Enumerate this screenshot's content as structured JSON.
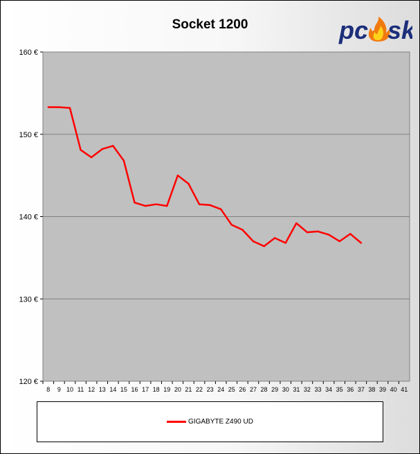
{
  "chart_data": {
    "type": "line",
    "title": "Socket 1200",
    "xlabel": "",
    "ylabel": "",
    "x": [
      8,
      9,
      10,
      11,
      12,
      13,
      14,
      15,
      16,
      17,
      18,
      19,
      20,
      21,
      22,
      23,
      24,
      25,
      26,
      27,
      28,
      29,
      30,
      31,
      32,
      33,
      34,
      35,
      36,
      37,
      38,
      39,
      40,
      41
    ],
    "x_tick_labels": [
      "8",
      "9",
      "10",
      "11",
      "12",
      "13",
      "14",
      "15",
      "16",
      "17",
      "18",
      "19",
      "20",
      "21",
      "22",
      "23",
      "24",
      "25",
      "26",
      "27",
      "28",
      "29",
      "30",
      "31",
      "32",
      "33",
      "34",
      "35",
      "36",
      "37",
      "38",
      "39",
      "40",
      "41"
    ],
    "ylim": [
      120,
      160
    ],
    "y_ticks": [
      120,
      130,
      140,
      150,
      160
    ],
    "y_tick_labels": [
      "120 €",
      "130 €",
      "140 €",
      "150 €",
      "160 €"
    ],
    "grid": true,
    "legend_position": "bottom",
    "series": [
      {
        "name": "GIGABYTE Z490 UD",
        "color": "#ff0000",
        "x": [
          8,
          9,
          10,
          11,
          12,
          13,
          14,
          15,
          16,
          17,
          18,
          19,
          20,
          21,
          22,
          23,
          24,
          25,
          26,
          27,
          28,
          29,
          30,
          31,
          32,
          33,
          34,
          35,
          36,
          37
        ],
        "values": [
          153.3,
          153.3,
          153.2,
          148.1,
          147.2,
          148.2,
          148.6,
          146.8,
          141.7,
          141.3,
          141.5,
          141.3,
          145.0,
          144.0,
          141.5,
          141.4,
          140.9,
          139.0,
          138.4,
          137.0,
          136.4,
          137.4,
          136.8,
          139.2,
          138.1,
          138.2,
          137.8,
          137.0,
          137.9,
          136.8
        ]
      }
    ],
    "colors": {
      "plot_background": "#c0c0c0",
      "gridline": "#808080"
    }
  },
  "logo": {
    "text_left": "pc",
    "text_right": "sk"
  }
}
